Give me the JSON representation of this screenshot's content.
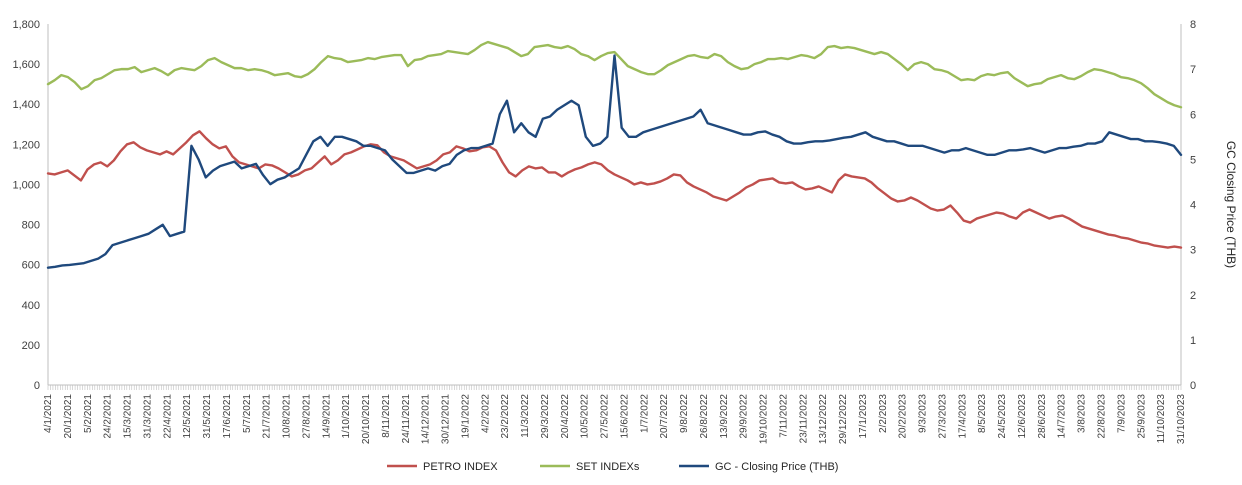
{
  "chart_data": {
    "type": "line",
    "title": "",
    "xlabel": "",
    "ylabel_left": "",
    "ylabel_right": "GC Closing Price (THB)",
    "ylim_left": [
      0,
      1800
    ],
    "ylim_right": [
      0,
      8
    ],
    "yticks_left": [
      "0",
      "200",
      "400",
      "600",
      "800",
      "1,000",
      "1,200",
      "1,400",
      "1,600",
      "1,800"
    ],
    "yticks_right": [
      "0",
      "1",
      "2",
      "3",
      "4",
      "5",
      "6",
      "7",
      "8"
    ],
    "x_ticks": [
      "4/1/2021",
      "20/1/2021",
      "5/2/2021",
      "24/2/2021",
      "15/3/2021",
      "31/3/2021",
      "22/4/2021",
      "12/5/2021",
      "31/5/2021",
      "17/6/2021",
      "5/7/2021",
      "21/7/2021",
      "10/8/2021",
      "27/8/2021",
      "14/9/2021",
      "1/10/2021",
      "20/10/2021",
      "8/11/2021",
      "24/11/2021",
      "14/12/2021",
      "30/12/2021",
      "19/1/2022",
      "4/2/2022",
      "23/2/2022",
      "11/3/2022",
      "29/3/2022",
      "20/4/2022",
      "10/5/2022",
      "27/5/2022",
      "15/6/2022",
      "1/7/2022",
      "20/7/2022",
      "9/8/2022",
      "26/8/2022",
      "13/9/2022",
      "29/9/2022",
      "19/10/2022",
      "7/11/2022",
      "23/11/2022",
      "13/12/2022",
      "29/12/2022",
      "17/1/2023",
      "2/2/2023",
      "20/2/2023",
      "9/3/2023",
      "27/3/2023",
      "17/4/2023",
      "8/5/2023",
      "24/5/2023",
      "12/6/2023",
      "28/6/2023",
      "14/7/2023",
      "3/8/2023",
      "22/8/2023",
      "7/9/2023",
      "25/9/2023",
      "11/10/2023",
      "31/10/2023"
    ],
    "legend_position": "bottom",
    "series": [
      {
        "name": "PETRO INDEX",
        "axis": "left",
        "color": "#c0504d",
        "values": [
          1055,
          1050,
          1060,
          1070,
          1045,
          1020,
          1075,
          1100,
          1110,
          1090,
          1120,
          1165,
          1200,
          1210,
          1185,
          1170,
          1160,
          1150,
          1165,
          1150,
          1180,
          1210,
          1245,
          1265,
          1230,
          1200,
          1180,
          1190,
          1140,
          1110,
          1100,
          1090,
          1080,
          1100,
          1095,
          1080,
          1060,
          1040,
          1050,
          1070,
          1080,
          1110,
          1140,
          1100,
          1120,
          1150,
          1160,
          1175,
          1190,
          1200,
          1195,
          1160,
          1140,
          1130,
          1120,
          1100,
          1080,
          1090,
          1100,
          1120,
          1150,
          1160,
          1190,
          1180,
          1165,
          1170,
          1185,
          1190,
          1170,
          1110,
          1060,
          1040,
          1070,
          1090,
          1080,
          1085,
          1060,
          1060,
          1040,
          1060,
          1075,
          1085,
          1100,
          1110,
          1100,
          1070,
          1050,
          1035,
          1020,
          1000,
          1010,
          1000,
          1005,
          1015,
          1030,
          1050,
          1045,
          1010,
          990,
          975,
          960,
          940,
          930,
          920,
          940,
          960,
          985,
          1000,
          1020,
          1025,
          1030,
          1010,
          1005,
          1010,
          990,
          975,
          980,
          990,
          975,
          960,
          1020,
          1050,
          1040,
          1035,
          1030,
          1010,
          980,
          955,
          930,
          915,
          920,
          935,
          920,
          900,
          880,
          870,
          875,
          895,
          860,
          820,
          810,
          830,
          840,
          850,
          860,
          855,
          840,
          830,
          860,
          875,
          860,
          845,
          830,
          840,
          845,
          830,
          810,
          790,
          780,
          770,
          760,
          750,
          745,
          735,
          730,
          720,
          710,
          705,
          695,
          690,
          685,
          690,
          685
        ]
      },
      {
        "name": "SET INDEXs",
        "axis": "left",
        "color": "#9bbb59",
        "values": [
          1500,
          1520,
          1545,
          1535,
          1510,
          1475,
          1490,
          1520,
          1530,
          1550,
          1570,
          1575,
          1575,
          1585,
          1560,
          1570,
          1580,
          1565,
          1545,
          1570,
          1580,
          1575,
          1570,
          1590,
          1620,
          1630,
          1610,
          1595,
          1580,
          1580,
          1570,
          1575,
          1570,
          1560,
          1545,
          1550,
          1555,
          1540,
          1535,
          1550,
          1575,
          1610,
          1640,
          1630,
          1625,
          1610,
          1615,
          1620,
          1630,
          1625,
          1635,
          1640,
          1645,
          1645,
          1590,
          1620,
          1625,
          1640,
          1645,
          1650,
          1665,
          1660,
          1655,
          1650,
          1670,
          1695,
          1710,
          1700,
          1690,
          1680,
          1660,
          1640,
          1650,
          1685,
          1690,
          1695,
          1685,
          1680,
          1690,
          1675,
          1650,
          1640,
          1620,
          1640,
          1655,
          1660,
          1625,
          1590,
          1575,
          1560,
          1550,
          1550,
          1570,
          1595,
          1610,
          1625,
          1640,
          1645,
          1635,
          1630,
          1650,
          1640,
          1610,
          1590,
          1575,
          1580,
          1600,
          1610,
          1625,
          1625,
          1630,
          1625,
          1635,
          1645,
          1640,
          1630,
          1650,
          1685,
          1690,
          1680,
          1685,
          1680,
          1670,
          1660,
          1650,
          1660,
          1650,
          1625,
          1600,
          1570,
          1600,
          1610,
          1600,
          1575,
          1570,
          1560,
          1540,
          1520,
          1525,
          1520,
          1540,
          1550,
          1545,
          1555,
          1560,
          1530,
          1510,
          1490,
          1500,
          1505,
          1525,
          1535,
          1545,
          1530,
          1525,
          1540,
          1560,
          1575,
          1570,
          1560,
          1550,
          1535,
          1530,
          1520,
          1505,
          1480,
          1450,
          1430,
          1410,
          1395,
          1385
        ]
      },
      {
        "name": "GC - Closing Price (THB)",
        "axis": "right",
        "color": "#1f497d",
        "values": [
          2.6,
          2.62,
          2.65,
          2.66,
          2.68,
          2.7,
          2.75,
          2.8,
          2.9,
          3.1,
          3.15,
          3.2,
          3.25,
          3.3,
          3.35,
          3.45,
          3.55,
          3.3,
          3.35,
          3.4,
          5.3,
          5.0,
          4.6,
          4.75,
          4.85,
          4.9,
          4.95,
          4.8,
          4.85,
          4.9,
          4.65,
          4.45,
          4.55,
          4.6,
          4.7,
          4.8,
          5.1,
          5.4,
          5.5,
          5.3,
          5.5,
          5.5,
          5.45,
          5.4,
          5.3,
          5.3,
          5.25,
          5.2,
          5.0,
          4.85,
          4.7,
          4.7,
          4.75,
          4.8,
          4.75,
          4.85,
          4.9,
          5.1,
          5.2,
          5.25,
          5.25,
          5.3,
          5.35,
          6.0,
          6.3,
          5.6,
          5.8,
          5.6,
          5.5,
          5.9,
          5.95,
          6.1,
          6.2,
          6.3,
          6.2,
          5.5,
          5.3,
          5.35,
          5.5,
          7.3,
          5.7,
          5.5,
          5.5,
          5.6,
          5.65,
          5.7,
          5.75,
          5.8,
          5.85,
          5.9,
          5.95,
          6.1,
          5.8,
          5.75,
          5.7,
          5.65,
          5.6,
          5.55,
          5.55,
          5.6,
          5.62,
          5.55,
          5.5,
          5.4,
          5.35,
          5.35,
          5.38,
          5.4,
          5.4,
          5.42,
          5.45,
          5.48,
          5.5,
          5.55,
          5.6,
          5.5,
          5.45,
          5.4,
          5.4,
          5.35,
          5.3,
          5.3,
          5.3,
          5.25,
          5.2,
          5.15,
          5.2,
          5.2,
          5.25,
          5.2,
          5.15,
          5.1,
          5.1,
          5.15,
          5.2,
          5.2,
          5.22,
          5.25,
          5.2,
          5.15,
          5.2,
          5.25,
          5.25,
          5.28,
          5.3,
          5.35,
          5.35,
          5.4,
          5.6,
          5.55,
          5.5,
          5.45,
          5.45,
          5.4,
          5.4,
          5.38,
          5.35,
          5.3,
          5.1
        ]
      }
    ]
  }
}
